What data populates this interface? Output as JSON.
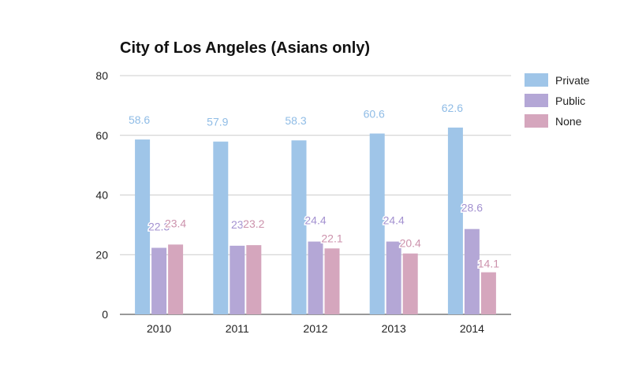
{
  "chart_data": {
    "type": "bar",
    "title": "City of Los Angeles (Asians only)",
    "xlabel": "",
    "ylabel": "",
    "categories": [
      "2010",
      "2011",
      "2012",
      "2013",
      "2014"
    ],
    "series": [
      {
        "name": "Private",
        "color": "#9fc5e8",
        "label_color": "#8fbce6",
        "values": [
          58.6,
          57.9,
          58.3,
          60.6,
          62.6
        ]
      },
      {
        "name": "Public",
        "color": "#b4a7d6",
        "label_color": "#a391d0",
        "values": [
          22.3,
          23,
          24.4,
          24.4,
          28.6
        ]
      },
      {
        "name": "None",
        "color": "#d5a6bd",
        "label_color": "#cc92ac",
        "values": [
          23.4,
          23.2,
          22.1,
          20.4,
          14.1
        ]
      }
    ],
    "data_labels": [
      [
        "58.6",
        "57.9",
        "58.3",
        "60.6",
        "62.6"
      ],
      [
        "22.3",
        "23",
        "24.4",
        "24.4",
        "28.6"
      ],
      [
        "23.4",
        "23.2",
        "22.1",
        "20.4",
        "14.1"
      ]
    ],
    "ylim": [
      0,
      80
    ],
    "yticks": [
      0,
      20,
      40,
      60,
      80
    ],
    "grid": true,
    "legend": "right"
  }
}
